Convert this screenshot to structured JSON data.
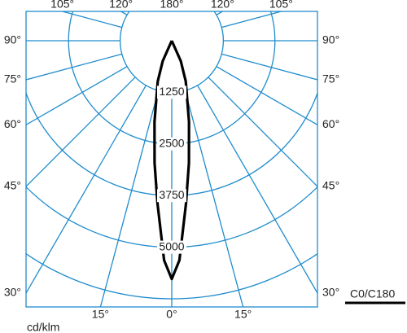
{
  "chart_data": {
    "type": "polar",
    "unit_label": "cd/klm",
    "rlim": [
      0,
      6250
    ],
    "rticks": [
      1250,
      2500,
      3750,
      5000,
      {
        "value": 6250,
        "label": null
      }
    ],
    "thetaticks": [
      {
        "value": -105,
        "label": "105°"
      },
      {
        "value": -120,
        "label": "120°"
      },
      {
        "value": 180,
        "label": "180°"
      },
      {
        "value": 120,
        "label": "120°"
      },
      {
        "value": 105,
        "label": "105°"
      },
      {
        "value": -90,
        "label": "90°"
      },
      {
        "value": -75,
        "label": "75°"
      },
      {
        "value": -60,
        "label": "60°"
      },
      {
        "value": -45,
        "label": "45°"
      },
      {
        "value": -30,
        "label": "30°"
      },
      {
        "value": 90,
        "label": "90°"
      },
      {
        "value": 75,
        "label": "75°"
      },
      {
        "value": 60,
        "label": "60°"
      },
      {
        "value": 45,
        "label": "45°"
      },
      {
        "value": 30,
        "label": "30°"
      },
      {
        "value": -15,
        "label": "15°"
      },
      {
        "value": 0,
        "label": "0°"
      },
      {
        "value": 15,
        "label": "15°"
      }
    ],
    "series": [
      {
        "name": "C0/C180",
        "color": "#000000",
        "theta": [
          -30,
          -24,
          -19,
          -12,
          -8,
          -5,
          -2,
          0,
          2,
          5,
          8,
          12,
          19,
          24,
          30
        ],
        "values": [
          0,
          540,
          1040,
          2010,
          2990,
          3960,
          5320,
          5770,
          5320,
          3960,
          2990,
          2010,
          1040,
          540,
          0
        ]
      }
    ]
  }
}
